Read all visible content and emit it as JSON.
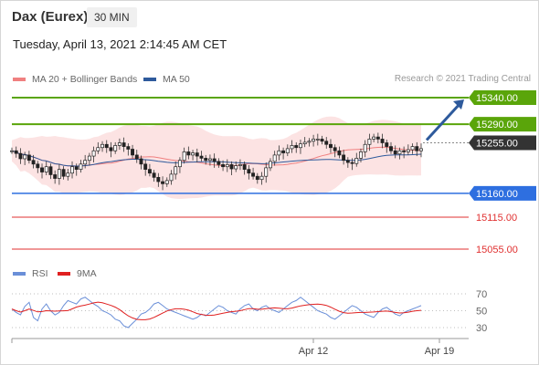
{
  "header": {
    "instrument": "Dax (Eurex)",
    "timeframe": "30 MIN",
    "datetime": "Tuesday, April 13, 2021 2:14:45 AM CET"
  },
  "legend": {
    "ma20": {
      "label": "MA 20 + Bollinger Bands",
      "color": "#f08080"
    },
    "ma50": {
      "label": "MA 50",
      "color": "#2e5a9c"
    },
    "credit": "Research © 2021 Trading Central"
  },
  "rsi_legend": {
    "rsi": {
      "label": "RSI",
      "color": "#6a8fd8"
    },
    "ma9": {
      "label": "9MA",
      "color": "#e02020"
    }
  },
  "chart_data": {
    "type": "candlestick",
    "price_range": [
      15030,
      15375
    ],
    "levels": [
      {
        "value": 15340.0,
        "label": "15340.00",
        "kind": "resistance",
        "color": "#5aa50a",
        "style": "tag"
      },
      {
        "value": 15290.0,
        "label": "15290.00",
        "kind": "resistance",
        "color": "#5aa50a",
        "style": "tag"
      },
      {
        "value": 15255.0,
        "label": "15255.00",
        "kind": "pivot",
        "color": "#333333",
        "style": "tag"
      },
      {
        "value": 15160.0,
        "label": "15160.00",
        "kind": "support",
        "color": "#2e6fe0",
        "style": "tag"
      },
      {
        "value": 15115.0,
        "label": "15115.00",
        "kind": "support",
        "color": "#e03030",
        "style": "text"
      },
      {
        "value": 15055.0,
        "label": "15055.00",
        "kind": "support",
        "color": "#e03030",
        "style": "text"
      }
    ],
    "arrow": {
      "from": 15255,
      "to": 15340
    },
    "close_approx": [
      15240,
      15235,
      15225,
      15232,
      15222,
      15215,
      15208,
      15200,
      15210,
      15195,
      15188,
      15205,
      15192,
      15198,
      15210,
      15205,
      15215,
      15222,
      15230,
      15240,
      15246,
      15252,
      15246,
      15240,
      15250,
      15255,
      15248,
      15243,
      15232,
      15225,
      15215,
      15205,
      15198,
      15190,
      15182,
      15178,
      15184,
      15196,
      15210,
      15222,
      15238,
      15232,
      15236,
      15230,
      15226,
      15222,
      15225,
      15220,
      15214,
      15210,
      15214,
      15206,
      15212,
      15214,
      15205,
      15198,
      15192,
      15186,
      15192,
      15208,
      15220,
      15232,
      15240,
      15236,
      15244,
      15250,
      15246,
      15253,
      15256,
      15258,
      15262,
      15262,
      15258,
      15252,
      15246,
      15240,
      15232,
      15222,
      15218,
      15216,
      15226,
      15238,
      15252,
      15262,
      15266,
      15262,
      15255,
      15248,
      15240,
      15234,
      15240,
      15238,
      15242,
      15248,
      15240,
      15244
    ],
    "rsi": {
      "ylim": [
        20,
        80
      ],
      "ticks": [
        70,
        50,
        30
      ],
      "values_approx": [
        52,
        48,
        45,
        55,
        60,
        42,
        38,
        52,
        58,
        50,
        45,
        48,
        56,
        62,
        60,
        58,
        64,
        66,
        62,
        58,
        55,
        50,
        48,
        45,
        40,
        38,
        32,
        30,
        35,
        40,
        46,
        48,
        52,
        58,
        60,
        56,
        52,
        50,
        48,
        46,
        44,
        42,
        40,
        42,
        46,
        44,
        48,
        52,
        56,
        54,
        50,
        48,
        46,
        52,
        56,
        58,
        52,
        50,
        54,
        56,
        52,
        50,
        48,
        52,
        56,
        60,
        62,
        66,
        62,
        58,
        54,
        50,
        48,
        46,
        42,
        40,
        44,
        48,
        52,
        56,
        54,
        50,
        46,
        44,
        42,
        48,
        52,
        54,
        50,
        46,
        44,
        48,
        50,
        52,
        54,
        56
      ]
    },
    "x_ticks": [
      "Apr 12",
      "Apr 19"
    ],
    "overlays": [
      "MA 20",
      "Bollinger Bands",
      "MA 50"
    ]
  }
}
